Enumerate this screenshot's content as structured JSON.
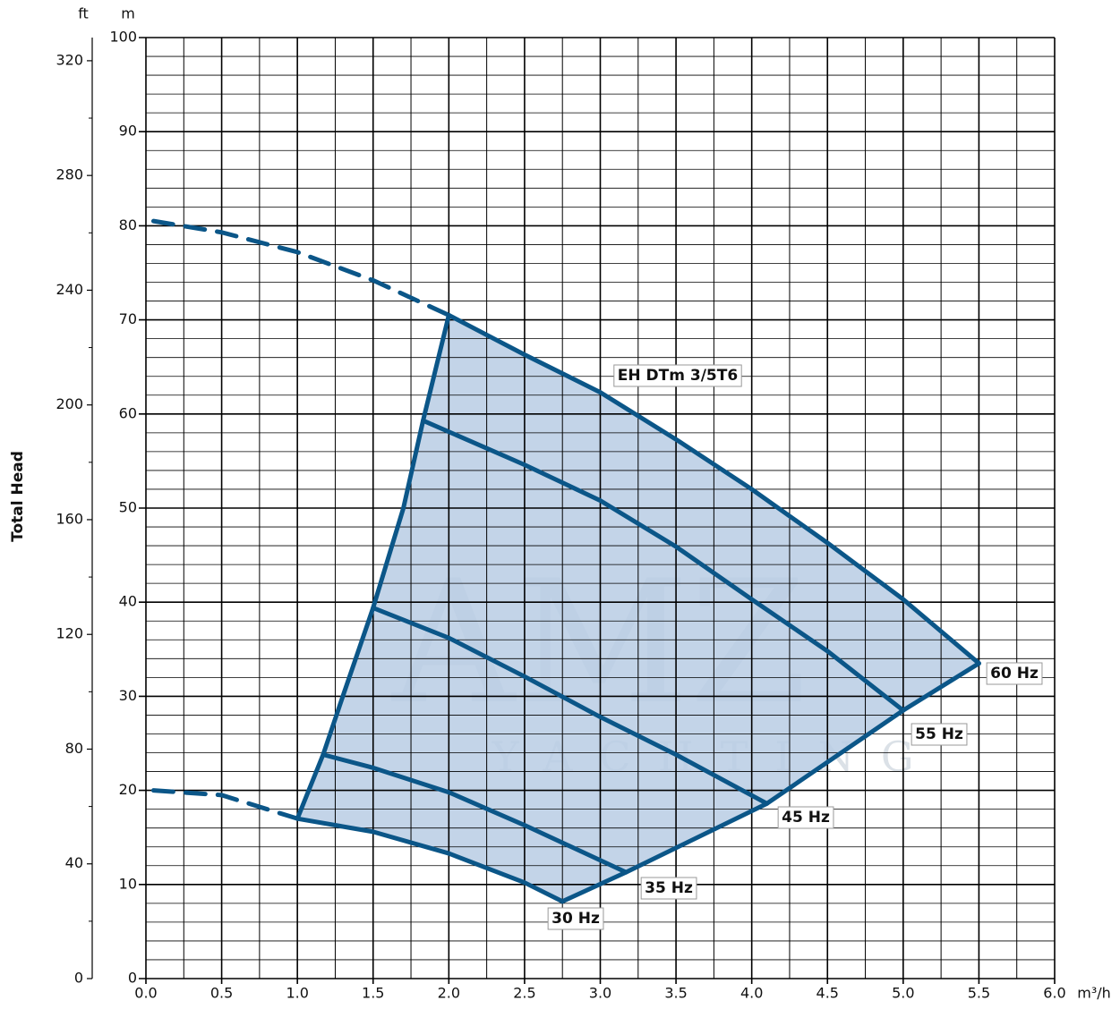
{
  "chart_data": {
    "type": "line",
    "y_label": "Total Head",
    "y_unit": "m",
    "y2_unit": "ft",
    "x_unit": "m³/h",
    "annotation": "EH DTm 3/5T6",
    "watermark": [
      "AMZ",
      "YACHTING"
    ],
    "grid": true,
    "fill_color": "#b9cce4",
    "xlim": [
      0,
      6
    ],
    "xticks": [
      {
        "value": 0,
        "label": "0.0"
      },
      {
        "value": 0.5,
        "label": "0.5"
      },
      {
        "value": 1,
        "label": "1.0"
      },
      {
        "value": 1.5,
        "label": "1.5"
      },
      {
        "value": 2,
        "label": "2.0"
      },
      {
        "value": 2.5,
        "label": "2.5"
      },
      {
        "value": 3,
        "label": "3.0"
      },
      {
        "value": 3.5,
        "label": "3.5"
      },
      {
        "value": 4,
        "label": "4.0"
      },
      {
        "value": 4.5,
        "label": "4.5"
      },
      {
        "value": 5,
        "label": "5.0"
      },
      {
        "value": 5.5,
        "label": "5.5"
      },
      {
        "value": 6,
        "label": "6.0"
      }
    ],
    "xminor_ticks": [
      0.25,
      0.75,
      1.25,
      1.75,
      2.25,
      2.75,
      3.25,
      3.75,
      4.25,
      4.75,
      5.25,
      5.75
    ],
    "ylim": [
      0,
      100
    ],
    "yticks": [
      0,
      10,
      20,
      30,
      40,
      50,
      60,
      70,
      80,
      90,
      100
    ],
    "yminor_ticks": [
      2,
      4,
      6,
      8,
      12,
      14,
      16,
      18,
      22,
      24,
      26,
      28,
      32,
      34,
      36,
      38,
      42,
      44,
      46,
      48,
      52,
      54,
      56,
      58,
      62,
      64,
      66,
      68,
      72,
      74,
      76,
      78,
      82,
      84,
      86,
      88,
      92,
      94,
      96,
      98
    ],
    "y2lim": [
      0,
      328.08
    ],
    "y2ticks": [
      0,
      40,
      80,
      120,
      160,
      200,
      240,
      280,
      320
    ],
    "y2minor_ticks": [
      20,
      60,
      100,
      140,
      180,
      220,
      260,
      300
    ],
    "series": [
      {
        "name": "60 Hz",
        "color": "#0b5688",
        "x": [
          2.0,
          2.5,
          3.0,
          3.5,
          4.0,
          4.5,
          5.0,
          5.5
        ],
        "values": [
          70.5,
          66.3,
          62.3,
          57.3,
          52,
          46.3,
          40.3,
          33.5
        ]
      },
      {
        "name": "55 Hz",
        "color": "#0b5688",
        "x": [
          1.83,
          2.5,
          3.0,
          3.5,
          4.0,
          4.5,
          5.0
        ],
        "values": [
          59.3,
          54.6,
          50.8,
          45.9,
          40.3,
          34.8,
          28.5
        ]
      },
      {
        "name": "45 Hz",
        "color": "#0b5688",
        "x": [
          1.5,
          2.0,
          2.5,
          3.0,
          3.5,
          4.1
        ],
        "values": [
          39.4,
          36.2,
          32.1,
          27.8,
          23.8,
          18.6
        ]
      },
      {
        "name": "35 Hz",
        "color": "#0b5688",
        "x": [
          1.17,
          1.5,
          2.0,
          2.5,
          3.17
        ],
        "values": [
          23.8,
          22.4,
          19.8,
          16.3,
          11.3
        ]
      },
      {
        "name": "30 Hz",
        "color": "#0b5688",
        "x": [
          1.0,
          1.5,
          2.0,
          2.5,
          2.75
        ],
        "values": [
          17.0,
          15.6,
          13.3,
          10.2,
          8.2
        ]
      },
      {
        "color": "#0b5688",
        "dashed": true,
        "x": [
          0.05,
          0.5,
          1.0,
          1.5,
          2.0
        ],
        "values": [
          80.5,
          79.3,
          77.2,
          74.2,
          70.5
        ]
      },
      {
        "color": "#0b5688",
        "dashed": true,
        "x": [
          0.05,
          0.5,
          1.0
        ],
        "values": [
          20.0,
          19.5,
          17.0
        ]
      },
      {
        "color": "#0b5688",
        "x": [
          1.0,
          1.17,
          1.3,
          1.5,
          1.7,
          1.83,
          2.0
        ],
        "values": [
          17.0,
          23.8,
          30.0,
          39.4,
          50.0,
          59.3,
          70.5
        ]
      },
      {
        "color": "#0b5688",
        "x": [
          2.75,
          3.17,
          4.1,
          5.0,
          5.5
        ],
        "values": [
          8.2,
          11.3,
          18.6,
          28.5,
          33.5
        ]
      }
    ]
  }
}
